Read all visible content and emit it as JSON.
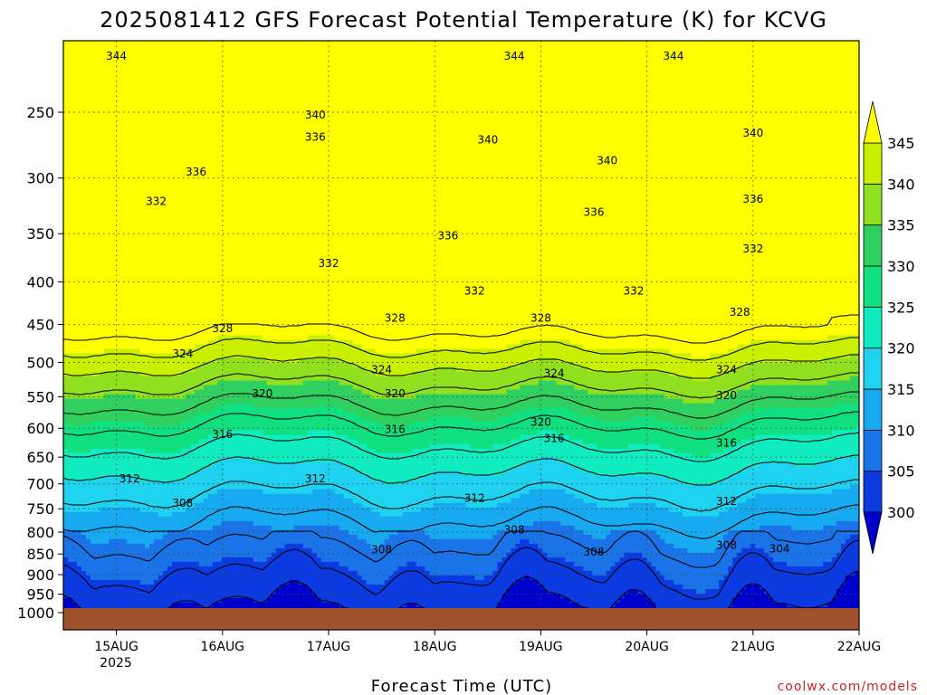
{
  "chart_data": {
    "type": "heatmap",
    "title": "2025081412 GFS Forecast Potential Temperature (K) for KCVG",
    "xlabel": "Forecast Time (UTC)",
    "ylabel": "",
    "credit": "coolwx.com/models",
    "x_ticks": [
      "15AUG",
      "16AUG",
      "17AUG",
      "18AUG",
      "19AUG",
      "20AUG",
      "21AUG",
      "22AUG"
    ],
    "x_year_label": "2025",
    "x_range": [
      "2025-08-14T12:00Z",
      "2025-08-22T00:00Z"
    ],
    "y_ticks": [
      250,
      300,
      350,
      400,
      450,
      500,
      550,
      600,
      650,
      700,
      750,
      800,
      850,
      900,
      950,
      1000
    ],
    "y_range": [
      1000,
      200
    ],
    "y_scale": "log",
    "colorbar": {
      "labels": [
        300,
        305,
        310,
        315,
        320,
        325,
        330,
        335,
        340,
        345
      ],
      "colors": [
        "#0000cc",
        "#0a3ae0",
        "#1a74e8",
        "#18aaf0",
        "#1ed2f0",
        "#10ecc0",
        "#10e080",
        "#30d060",
        "#90e020",
        "#c8f000",
        "#ffff00"
      ]
    },
    "contour_interval": 4,
    "contour_labels": [
      {
        "t": "2025-08-15T00",
        "p": 214,
        "v": 344
      },
      {
        "t": "2025-08-18T18",
        "p": 214,
        "v": 344
      },
      {
        "t": "2025-08-20T06",
        "p": 214,
        "v": 344
      },
      {
        "t": "2025-08-16T21",
        "p": 252,
        "v": 340
      },
      {
        "t": "2025-08-18T12",
        "p": 270,
        "v": 340
      },
      {
        "t": "2025-08-19T15",
        "p": 286,
        "v": 340
      },
      {
        "t": "2025-08-21T00",
        "p": 265,
        "v": 340
      },
      {
        "t": "2025-08-15T18",
        "p": 295,
        "v": 336
      },
      {
        "t": "2025-08-16T21",
        "p": 268,
        "v": 336
      },
      {
        "t": "2025-08-18T03",
        "p": 352,
        "v": 336
      },
      {
        "t": "2025-08-19T12",
        "p": 330,
        "v": 336
      },
      {
        "t": "2025-08-21T00",
        "p": 318,
        "v": 336
      },
      {
        "t": "2025-08-15T09",
        "p": 320,
        "v": 332
      },
      {
        "t": "2025-08-17T00",
        "p": 380,
        "v": 332
      },
      {
        "t": "2025-08-18T09",
        "p": 410,
        "v": 332
      },
      {
        "t": "2025-08-19T21",
        "p": 410,
        "v": 332
      },
      {
        "t": "2025-08-21T00",
        "p": 365,
        "v": 332
      },
      {
        "t": "2025-08-16T00",
        "p": 455,
        "v": 328
      },
      {
        "t": "2025-08-17T15",
        "p": 442,
        "v": 328
      },
      {
        "t": "2025-08-19T00",
        "p": 442,
        "v": 328
      },
      {
        "t": "2025-08-20T21",
        "p": 435,
        "v": 328
      },
      {
        "t": "2025-08-15T15",
        "p": 488,
        "v": 324
      },
      {
        "t": "2025-08-17T12",
        "p": 510,
        "v": 324
      },
      {
        "t": "2025-08-19T03",
        "p": 515,
        "v": 324
      },
      {
        "t": "2025-08-20T18",
        "p": 510,
        "v": 324
      },
      {
        "t": "2025-08-16T09",
        "p": 545,
        "v": 320
      },
      {
        "t": "2025-08-17T15",
        "p": 545,
        "v": 320
      },
      {
        "t": "2025-08-19T00",
        "p": 590,
        "v": 320
      },
      {
        "t": "2025-08-20T18",
        "p": 548,
        "v": 320
      },
      {
        "t": "2025-08-16T00",
        "p": 610,
        "v": 316
      },
      {
        "t": "2025-08-17T15",
        "p": 602,
        "v": 316
      },
      {
        "t": "2025-08-19T03",
        "p": 617,
        "v": 316
      },
      {
        "t": "2025-08-20T18",
        "p": 625,
        "v": 316
      },
      {
        "t": "2025-08-15T03",
        "p": 690,
        "v": 312
      },
      {
        "t": "2025-08-16T21",
        "p": 690,
        "v": 312
      },
      {
        "t": "2025-08-18T09",
        "p": 728,
        "v": 312
      },
      {
        "t": "2025-08-20T18",
        "p": 735,
        "v": 312
      },
      {
        "t": "2025-08-15T15",
        "p": 738,
        "v": 308
      },
      {
        "t": "2025-08-17T12",
        "p": 840,
        "v": 308
      },
      {
        "t": "2025-08-18T18",
        "p": 795,
        "v": 308
      },
      {
        "t": "2025-08-19T12",
        "p": 845,
        "v": 308
      },
      {
        "t": "2025-08-20T18",
        "p": 830,
        "v": 308
      },
      {
        "t": "2025-08-21T06",
        "p": 838,
        "v": 304
      }
    ]
  }
}
